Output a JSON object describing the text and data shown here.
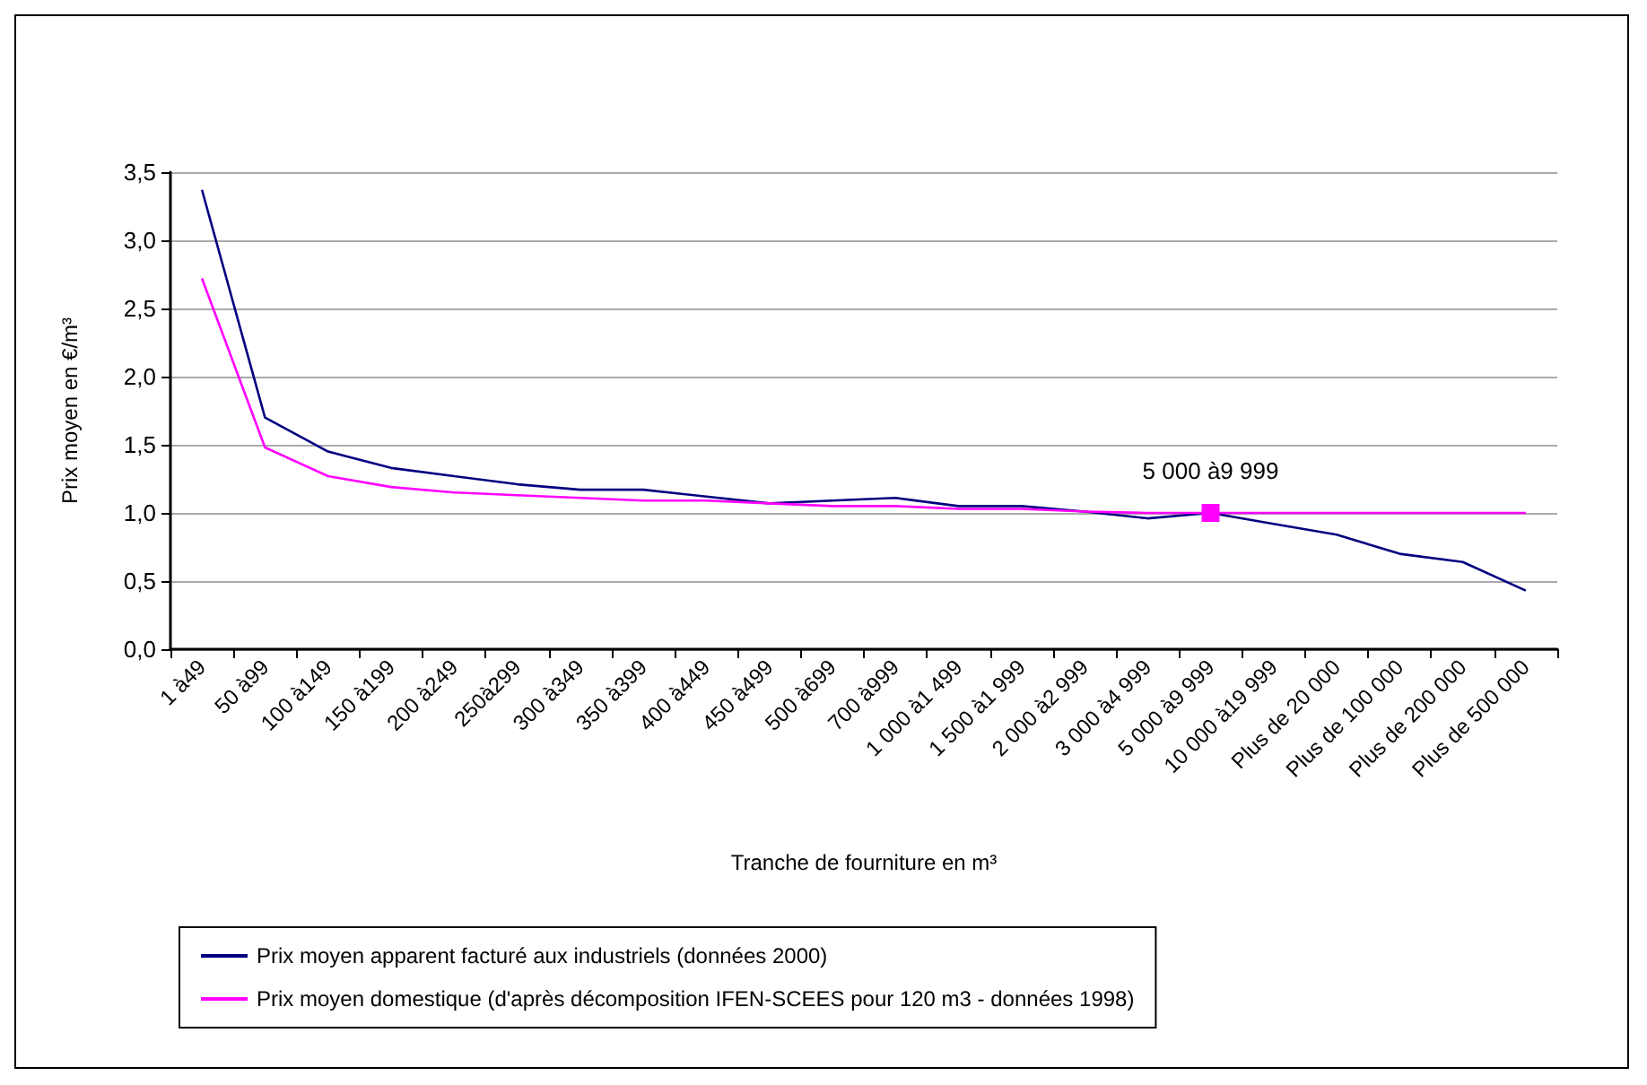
{
  "chart_data": {
    "type": "line",
    "xlabel": "Tranche de fourniture en m³",
    "ylabel": "Prix moyen en €/m³",
    "categories": [
      "1 à49",
      "50 à99",
      "100 à149",
      "150 à199",
      "200 à249",
      "250à299",
      "300 à349",
      "350 à399",
      "400 à449",
      "450 à499",
      "500 à699",
      "700 à999",
      "1 000 à1 499",
      "1 500 à1 999",
      "2 000 à2 999",
      "3 000 à4 999",
      "5 000 à9 999",
      "10 000 à19 999",
      "Plus de 20 000",
      "Plus de 100 000",
      "Plus de 200 000",
      "Plus de 500 000"
    ],
    "series": [
      {
        "name": "Prix moyen apparent facturé aux industriels (données 2000)",
        "color": "#000080",
        "values": [
          3.37,
          1.7,
          1.45,
          1.33,
          1.27,
          1.21,
          1.17,
          1.17,
          1.12,
          1.07,
          1.09,
          1.11,
          1.05,
          1.05,
          1.01,
          0.96,
          1.0,
          0.92,
          0.84,
          0.7,
          0.64,
          0.43
        ]
      },
      {
        "name": "Prix moyen domestique (d'après décomposition IFEN-SCEES pour 120 m3 - données 1998)",
        "color": "#ff00ff",
        "values": [
          2.72,
          1.48,
          1.27,
          1.19,
          1.15,
          1.13,
          1.11,
          1.09,
          1.09,
          1.07,
          1.05,
          1.05,
          1.03,
          1.03,
          1.01,
          1.0,
          1.0,
          1.0,
          1.0,
          1.0,
          1.0,
          1.0
        ]
      }
    ],
    "annotations": [
      {
        "text": "5 000 à9 999",
        "x": "5 000 à9 999",
        "y": 1.0
      }
    ],
    "ylim": [
      0,
      3.5
    ],
    "yticks": [
      {
        "value": 0,
        "label": "0,0"
      },
      {
        "value": 0.5,
        "label": "0,5"
      },
      {
        "value": 1,
        "label": "1,0"
      },
      {
        "value": 1.5,
        "label": "1,5"
      },
      {
        "value": 2,
        "label": "2,0"
      },
      {
        "value": 2.5,
        "label": "2,5"
      },
      {
        "value": 3,
        "label": "3,0"
      },
      {
        "value": 3.5,
        "label": "3,5"
      }
    ],
    "grid": "y",
    "legend": "bottom",
    "marker": "none",
    "line_style": "solid"
  }
}
